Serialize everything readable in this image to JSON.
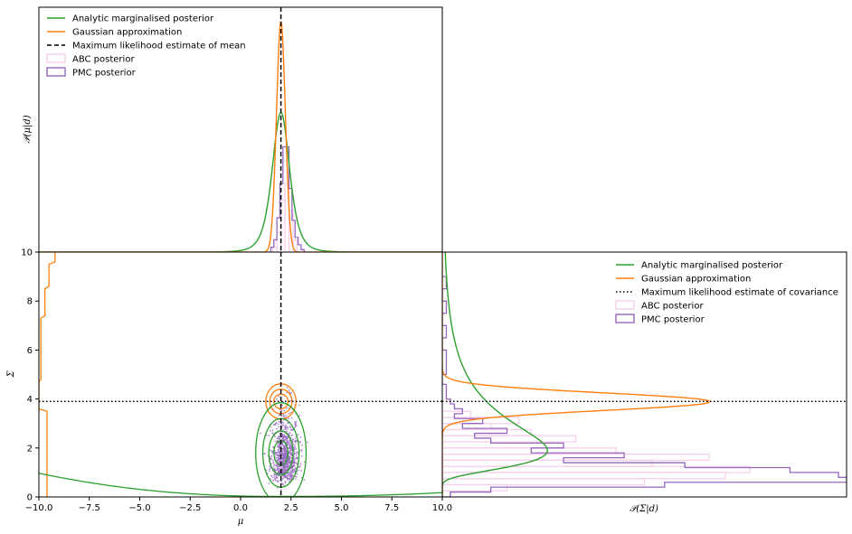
{
  "chart_data": [
    {
      "panel": "top-marginal",
      "type": "line",
      "xlim": [
        -10,
        10
      ],
      "ylabel": "𝒫(μ|d)",
      "mle_mean": 2.0,
      "legend": {
        "placement": "upper-left",
        "entries": [
          {
            "label": "Analytic marginalised posterior",
            "color": "#2ca02c",
            "style": "solid"
          },
          {
            "label": "Gaussian approximation",
            "color": "#ff7f0e",
            "style": "solid"
          },
          {
            "label": "Maximum likelihood estimate of mean",
            "color": "#000000",
            "style": "dashed"
          },
          {
            "label": "ABC posterior",
            "color": "#f5cdea",
            "style": "box"
          },
          {
            "label": "PMC posterior",
            "color": "#9467bd",
            "style": "box"
          }
        ]
      },
      "series": [
        {
          "name": "Analytic marginalised posterior",
          "kind": "student-t",
          "center": 2.0,
          "scale": 0.45,
          "peak": 0.57
        },
        {
          "name": "Gaussian approximation",
          "kind": "gaussian",
          "center": 2.0,
          "sigma": 0.22,
          "peak": 0.94
        },
        {
          "name": "PMC posterior",
          "kind": "histogram",
          "bins": [
            1.5,
            1.65,
            1.8,
            1.95,
            2.1,
            2.25,
            2.4,
            2.55,
            2.7,
            2.85,
            3.0,
            3.15
          ],
          "heights": [
            0.02,
            0.05,
            0.14,
            0.28,
            0.43,
            0.43,
            0.26,
            0.13,
            0.06,
            0.03,
            0.01
          ]
        },
        {
          "name": "ABC posterior",
          "kind": "histogram",
          "bins": [
            1.6,
            1.8,
            2.0,
            2.2,
            2.4,
            2.6,
            2.8
          ],
          "heights": [
            0.02,
            0.08,
            0.21,
            0.28,
            0.17,
            0.05
          ]
        }
      ]
    },
    {
      "panel": "joint",
      "type": "scatter",
      "xlabel": "μ",
      "ylabel": "Σ",
      "xlim": [
        -10,
        10
      ],
      "ylim": [
        0,
        10
      ],
      "xticks": [
        "−10.0",
        "−7.5",
        "−5.0",
        "−2.5",
        "0.0",
        "2.5",
        "5.0",
        "7.5",
        "10.0"
      ],
      "xtick_values": [
        -10,
        -7.5,
        -5,
        -2.5,
        0,
        2.5,
        5,
        7.5,
        10
      ],
      "yticks": [
        "0",
        "2",
        "4",
        "6",
        "8",
        "10"
      ],
      "ytick_values": [
        0,
        2,
        4,
        6,
        8,
        10
      ],
      "mle_mean": 2.0,
      "mle_covariance": 3.9,
      "contours": [
        {
          "name": "Gaussian approximation",
          "color": "#ff7f0e",
          "center": [
            2.0,
            3.9
          ],
          "radii": [
            [
              0.35,
              0.3
            ],
            [
              0.55,
              0.5
            ],
            [
              0.75,
              0.72
            ]
          ]
        },
        {
          "name": "Analytic marginalised posterior",
          "color": "#2ca02c",
          "center": [
            2.0,
            1.8
          ],
          "radii": [
            [
              0.35,
              0.5
            ],
            [
              0.6,
              0.9
            ],
            [
              0.9,
              1.4
            ],
            [
              1.25,
              2.05
            ]
          ]
        }
      ],
      "scatter": {
        "name": "PMC posterior",
        "color": "#9467bd",
        "n": 900,
        "mu_center": 2.2,
        "mu_spread": 0.35,
        "sigma_mode": 1.6
      }
    },
    {
      "panel": "right-marginal",
      "type": "line",
      "xlabel": "𝒫(Σ|d)",
      "ylim": [
        0,
        10
      ],
      "mle_covariance": 3.9,
      "legend": {
        "placement": "upper-right",
        "entries": [
          {
            "label": "Analytic marginalised posterior",
            "color": "#2ca02c",
            "style": "solid"
          },
          {
            "label": "Gaussian approximation",
            "color": "#ff7f0e",
            "style": "solid"
          },
          {
            "label": "Maximum likelihood estimate of covariance",
            "color": "#000000",
            "style": "dotted"
          },
          {
            "label": "ABC posterior",
            "color": "#f5cdea",
            "style": "box"
          },
          {
            "label": "PMC posterior",
            "color": "#9467bd",
            "style": "box"
          }
        ]
      },
      "series": [
        {
          "name": "Analytic marginalised posterior",
          "kind": "inverse-gamma",
          "mode": 1.9,
          "peak": 0.26
        },
        {
          "name": "Gaussian approximation",
          "kind": "gaussian",
          "center": 3.9,
          "sigma": 0.35,
          "peak": 0.66
        },
        {
          "name": "PMC posterior",
          "kind": "histogram",
          "bins": [
            0.0,
            0.2,
            0.4,
            0.6,
            0.8,
            1.0,
            1.2,
            1.4,
            1.6,
            1.8,
            2.0,
            2.2,
            2.4,
            2.6,
            2.8,
            3.0,
            3.2,
            3.4,
            3.6,
            3.8,
            4.0,
            4.2,
            4.4,
            4.6,
            4.8,
            5.0,
            5.5,
            6.0,
            6.5,
            7.0,
            7.5,
            8.0,
            8.5,
            9.0
          ],
          "heights": [
            0.02,
            0.12,
            0.55,
            1.0,
            0.98,
            0.86,
            0.6,
            0.3,
            0.45,
            0.22,
            0.3,
            0.12,
            0.08,
            0.16,
            0.05,
            0.1,
            0.03,
            0.05,
            0.03,
            0.02,
            0.01,
            0.01,
            0.01,
            0.0,
            0.0,
            0.01,
            0.01,
            0.0,
            0.01,
            0.0,
            0.01,
            0.0,
            0.01
          ]
        },
        {
          "name": "ABC posterior",
          "kind": "histogram",
          "bins": [
            0.0,
            0.25,
            0.5,
            0.75,
            1.0,
            1.25,
            1.5,
            1.75,
            2.0,
            2.25,
            2.5,
            2.75,
            3.0,
            3.25,
            3.5
          ],
          "heights": [
            0.02,
            0.16,
            0.5,
            0.7,
            0.76,
            0.52,
            0.66,
            0.43,
            0.3,
            0.33,
            0.22,
            0.12,
            0.19,
            0.07
          ]
        }
      ]
    }
  ]
}
